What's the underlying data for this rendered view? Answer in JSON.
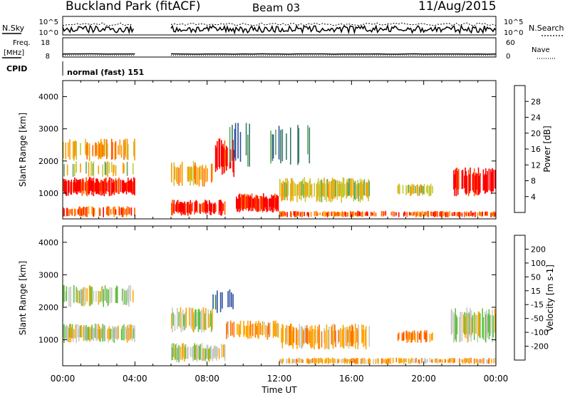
{
  "header": {
    "station": "Buckland Park (fitACF)",
    "beam": "Beam 03",
    "date": "11/Aug/2015"
  },
  "status_panels": {
    "nsky_label": "N.Sky",
    "nsky_ticks": [
      "10^5",
      "10^0"
    ],
    "nsearch_label": "N.Search",
    "nsearch_ticks": [
      "10^5",
      "10^0"
    ],
    "freq_label_1": "Freq.",
    "freq_label_2": "[MHz]",
    "freq_ticks": [
      "18",
      "8"
    ],
    "nave_label": "Nave",
    "nave_ticks": [
      "60",
      "0"
    ],
    "cpid_label": "CPID",
    "cpid_value": "normal (fast) 151"
  },
  "chart_data": [
    {
      "type": "heatmap",
      "name": "power",
      "ylabel": "Slant Range [km]",
      "yticks": [
        "1000",
        "2000",
        "3000",
        "4000"
      ],
      "ylim": [
        200,
        4500
      ],
      "xlim_hours": [
        0,
        24
      ],
      "data_gap_hours": [
        4.0,
        5.9
      ],
      "colorbar_label": "Power [dB]",
      "colorbar_ticks": [
        "4",
        "8",
        "12",
        "16",
        "20",
        "24",
        "28"
      ],
      "colorbar_range": [
        0,
        32
      ],
      "colors": [
        "#0000e0",
        "#2d4f9e",
        "#3a7a6a",
        "#5fa85a",
        "#c6c832",
        "#ff9900",
        "#ff5a00",
        "#ff0000"
      ],
      "regions": [
        {
          "t": [
            0.0,
            4.0
          ],
          "r": [
            900,
            1500
          ],
          "level": 7,
          "density": 0.9
        },
        {
          "t": [
            0.0,
            4.0
          ],
          "r": [
            1500,
            2000
          ],
          "level": 4,
          "density": 0.4
        },
        {
          "t": [
            0.0,
            4.0
          ],
          "r": [
            2000,
            2700
          ],
          "level": 5,
          "density": 0.55
        },
        {
          "t": [
            0.0,
            4.0
          ],
          "r": [
            250,
            600
          ],
          "level": 6,
          "density": 0.6
        },
        {
          "t": [
            6.0,
            8.3
          ],
          "r": [
            1200,
            2000
          ],
          "level": 5,
          "density": 0.6
        },
        {
          "t": [
            6.0,
            9.0
          ],
          "r": [
            300,
            800
          ],
          "level": 7,
          "density": 0.8
        },
        {
          "t": [
            8.3,
            9.5
          ],
          "r": [
            1500,
            2700
          ],
          "level": 7,
          "density": 0.7
        },
        {
          "t": [
            9.5,
            12.0
          ],
          "r": [
            400,
            1000
          ],
          "level": 7,
          "density": 0.85
        },
        {
          "t": [
            12.0,
            17.0
          ],
          "r": [
            700,
            1500
          ],
          "level": 4,
          "density": 0.8
        },
        {
          "t": [
            12.0,
            24.0
          ],
          "r": [
            250,
            450
          ],
          "level": 6,
          "density": 0.6
        },
        {
          "t": [
            18.5,
            20.5
          ],
          "r": [
            900,
            1300
          ],
          "level": 4,
          "density": 0.6
        },
        {
          "t": [
            21.5,
            24.0
          ],
          "r": [
            900,
            1800
          ],
          "level": 7,
          "density": 0.75
        },
        {
          "t": [
            9.0,
            14.0
          ],
          "r": [
            1800,
            3200
          ],
          "level": 2,
          "density": 0.15
        }
      ]
    },
    {
      "type": "heatmap",
      "name": "velocity",
      "ylabel": "Slant Range [km]",
      "yticks": [
        "1000",
        "2000",
        "3000",
        "4000"
      ],
      "ylim": [
        200,
        4500
      ],
      "xlim_hours": [
        0,
        24
      ],
      "data_gap_hours": [
        4.0,
        5.9
      ],
      "xlabel": "Time UT",
      "xticks": [
        "00:00",
        "04:00",
        "08:00",
        "12:00",
        "16:00",
        "20:00",
        "00:00"
      ],
      "colorbar_label": "Velocity [m s-1]",
      "colorbar_ticks": [
        "200",
        "100",
        "50",
        "15",
        "-15",
        "-50",
        "-100",
        "-200"
      ],
      "colorbar_range": [
        -250,
        250
      ],
      "colors": [
        "#1a1aa0",
        "#2d4fa0",
        "#2e8a2e",
        "#60c040",
        "#c8c8c0",
        "#ffa500",
        "#ff7000",
        "#ff3a00",
        "#ff0000"
      ],
      "regions": [
        {
          "t": [
            0.0,
            4.0
          ],
          "r": [
            900,
            1500
          ],
          "level": 4,
          "density": 0.9
        },
        {
          "t": [
            0.0,
            4.0
          ],
          "r": [
            2000,
            2700
          ],
          "level": 4,
          "density": 0.55
        },
        {
          "t": [
            6.0,
            9.0
          ],
          "r": [
            300,
            900
          ],
          "level": 4,
          "density": 0.8
        },
        {
          "t": [
            6.0,
            8.3
          ],
          "r": [
            1200,
            2000
          ],
          "level": 4,
          "density": 0.6
        },
        {
          "t": [
            9.0,
            12.0
          ],
          "r": [
            1000,
            1600
          ],
          "level": 5,
          "density": 0.6
        },
        {
          "t": [
            12.0,
            17.0
          ],
          "r": [
            700,
            1500
          ],
          "level": 5,
          "density": 0.7
        },
        {
          "t": [
            12.0,
            24.0
          ],
          "r": [
            250,
            450
          ],
          "level": 5,
          "density": 0.6
        },
        {
          "t": [
            18.5,
            20.5
          ],
          "r": [
            900,
            1300
          ],
          "level": 6,
          "density": 0.6
        },
        {
          "t": [
            21.5,
            24.0
          ],
          "r": [
            900,
            2000
          ],
          "level": 4,
          "density": 0.75
        },
        {
          "t": [
            8.3,
            9.5
          ],
          "r": [
            1800,
            2600
          ],
          "level": 1,
          "density": 0.4
        }
      ]
    }
  ]
}
